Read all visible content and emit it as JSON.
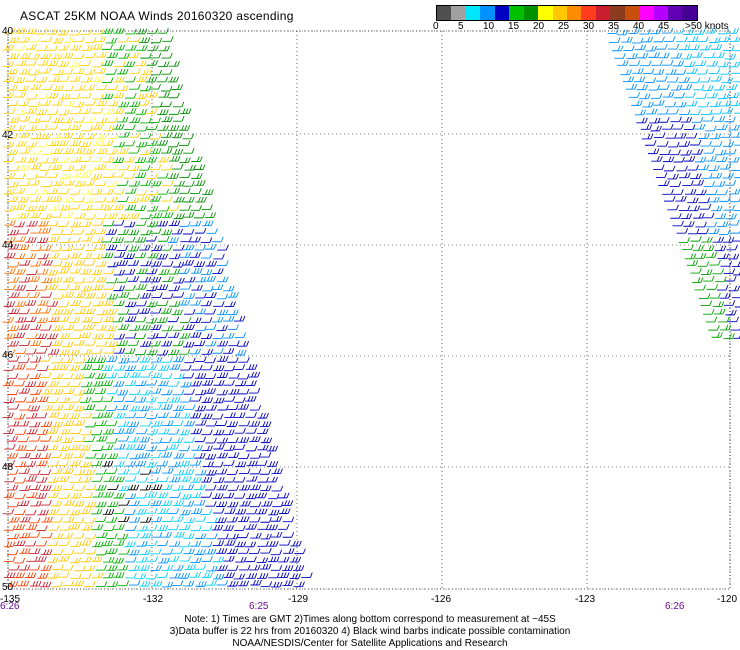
{
  "title": "ASCAT 25KM NOAA Winds 20160320 ascending",
  "legend": {
    "colors": [
      "#505050",
      "#a0a0a0",
      "#00e6ff",
      "#0090ff",
      "#0000c0",
      "#00c000",
      "#009000",
      "#ffff00",
      "#ffc800",
      "#ff8c00",
      "#ff3c1e",
      "#c81e2d",
      "#8c3c1e",
      "#c8500a",
      "#ff00ff",
      "#b400ff",
      "#6400b4",
      "#460096"
    ],
    "labels": [
      "0",
      "5",
      "10",
      "15",
      "20",
      "25",
      "30",
      "35",
      "40",
      "45",
      ">50 knots"
    ]
  },
  "latitude_labels": [
    "40",
    "42",
    "44",
    "46",
    "48",
    "50"
  ],
  "longitude_labels": [
    "-135",
    "-132",
    "-129",
    "-126",
    "-123",
    "-120"
  ],
  "time_labels": [
    "6:26",
    "6:25",
    "6:26"
  ],
  "notes": [
    "Note: 1) Times are GMT 2)Times along bottom correspond to measurement at ~45S",
    "3)Data buffer is 22 hrs from 20160320 4) Black wind barbs indicate possible contamination",
    "NOAA/NESDIS/Center for Satellite Applications and Research"
  ]
}
